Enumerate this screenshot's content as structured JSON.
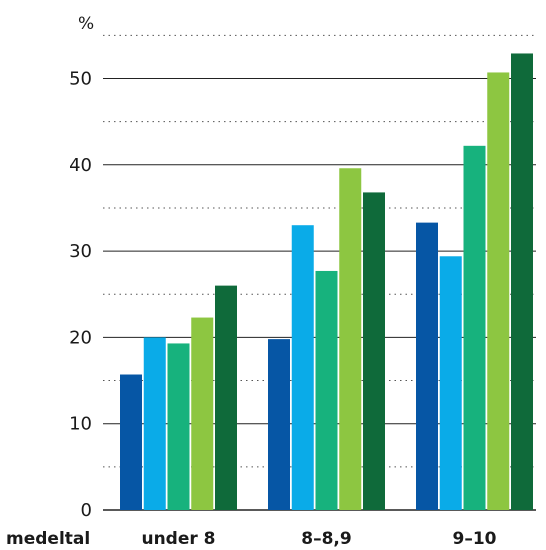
{
  "chart_data": {
    "type": "bar",
    "unit_label": "%",
    "row_label": "medeltal",
    "categories": [
      "under 8",
      "8–8,9",
      "9–10"
    ],
    "ylim": [
      0,
      55
    ],
    "yticks": [
      0,
      10,
      20,
      30,
      40,
      50
    ],
    "grid": "solid at major ticks, dotted at half ticks",
    "series": [
      {
        "color": "#0656a5",
        "values": [
          15.7,
          19.8,
          33.3
        ]
      },
      {
        "color": "#0aabe8",
        "values": [
          20.0,
          33.0,
          29.4
        ]
      },
      {
        "color": "#17b27d",
        "values": [
          19.3,
          27.7,
          42.2
        ]
      },
      {
        "color": "#8dc641",
        "values": [
          22.3,
          39.6,
          50.7
        ]
      },
      {
        "color": "#0f6a3a",
        "values": [
          26.0,
          36.8,
          52.9
        ]
      }
    ]
  }
}
